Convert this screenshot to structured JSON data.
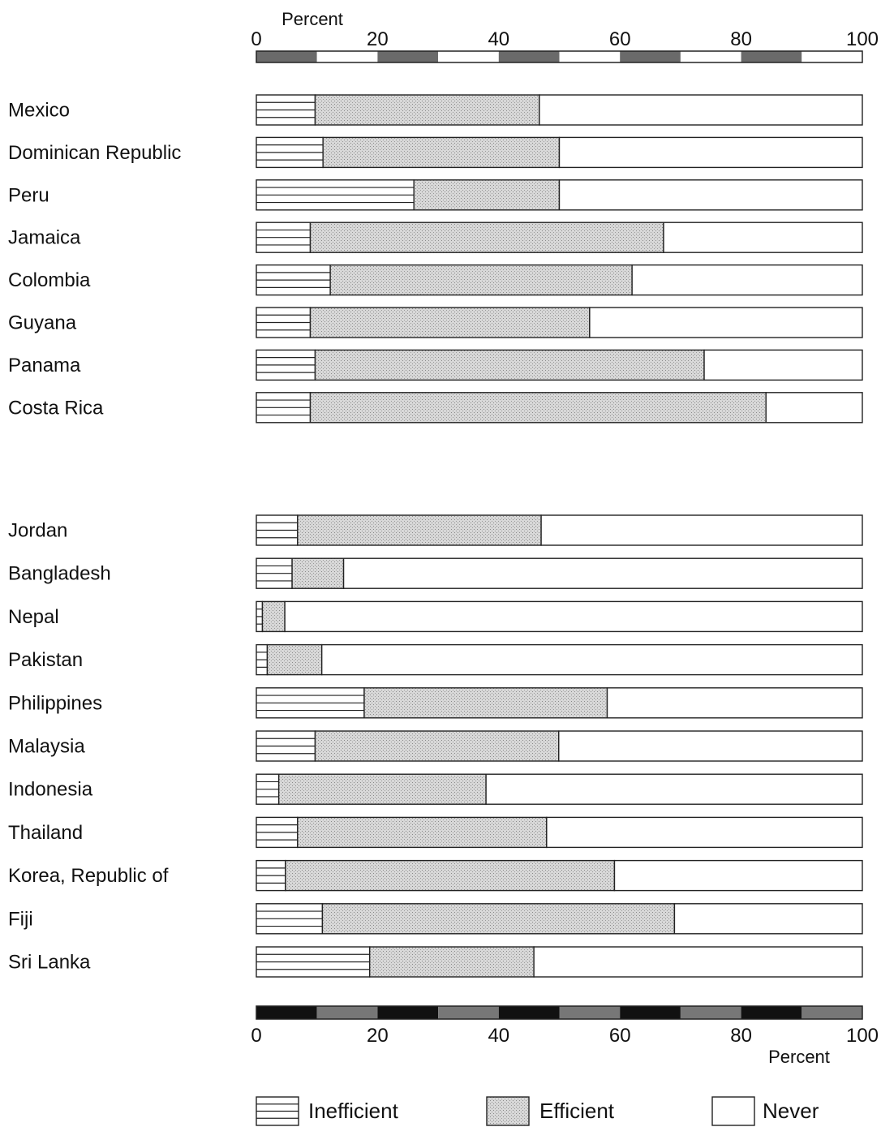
{
  "chart_data": {
    "type": "bar",
    "stacked": true,
    "orientation": "horizontal",
    "axis_title_top": "Percent",
    "axis_title_bottom": "Percent",
    "xlim": [
      0,
      100
    ],
    "ticks": [
      "0",
      "20",
      "40",
      "60",
      "80",
      "100"
    ],
    "legend_position": "bottom",
    "legend": [
      {
        "key": "inefficient",
        "label": "Inefficient",
        "pattern": "horizontal-lines"
      },
      {
        "key": "efficient",
        "label": "Efficient",
        "pattern": "dotted-gray"
      },
      {
        "key": "never",
        "label": "Never",
        "pattern": "white"
      }
    ],
    "colors": {
      "efficient": "#d4d4d4",
      "stroke": "#222222",
      "never": "#ffffff"
    },
    "groups": [
      {
        "categories": [
          "Mexico",
          "Dominican Republic",
          "Peru",
          "Jamaica",
          "Colombia",
          "Guyana",
          "Panama",
          "Costa Rica"
        ],
        "series": [
          {
            "key": "inefficient",
            "values": [
              9.7,
              11,
              26,
              8.9,
              12.2,
              8.9,
              9.7,
              8.9
            ]
          },
          {
            "key": "efficient",
            "values": [
              37,
              39,
              24,
              58.3,
              49.8,
              46.1,
              64.2,
              75.2
            ]
          },
          {
            "key": "never",
            "values": [
              53.3,
              50,
              50,
              32.8,
              38,
              45,
              26.1,
              15.9
            ]
          }
        ]
      },
      {
        "categories": [
          "Jordan",
          "Bangladesh",
          "Nepal",
          "Pakistan",
          "Philippines",
          "Malaysia",
          "Indonesia",
          "Thailand",
          "Korea, Republic of",
          "Fiji",
          "Sri Lanka"
        ],
        "series": [
          {
            "key": "inefficient",
            "values": [
              6.8,
              5.9,
              1,
              1.8,
              17.8,
              9.7,
              3.7,
              6.8,
              4.8,
              10.9,
              18.7
            ]
          },
          {
            "key": "efficient",
            "values": [
              40.2,
              8.5,
              3.7,
              9,
              40.1,
              40.2,
              34.2,
              41.1,
              54.3,
              58.1,
              27.1
            ]
          },
          {
            "key": "never",
            "values": [
              53,
              85.6,
              95.3,
              89.2,
              42.1,
              50.1,
              62.1,
              52.1,
              40.9,
              31,
              54.2
            ]
          }
        ]
      }
    ]
  }
}
